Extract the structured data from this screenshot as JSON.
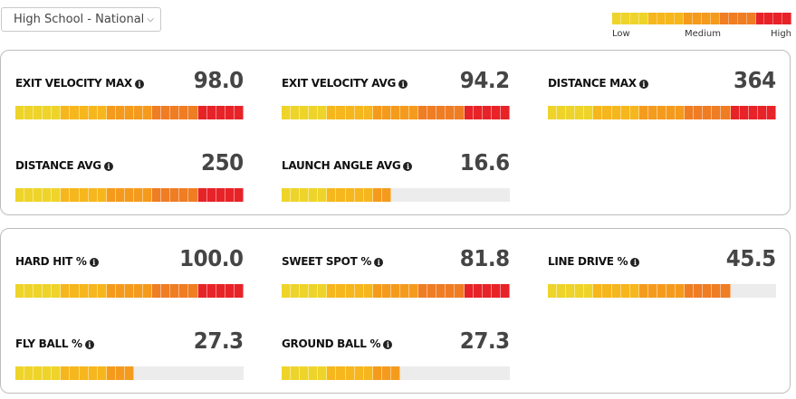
{
  "filter": {
    "selected": "High School - National"
  },
  "legend": {
    "low": "Low",
    "medium": "Medium",
    "high": "High",
    "colors": [
      "#eed42a",
      "#f6b61d",
      "#f49b1d",
      "#ef7d24",
      "#e72328"
    ]
  },
  "panels": [
    {
      "metrics": [
        {
          "label": "EXIT VELOCITY MAX",
          "value": "98.0",
          "level": 1.0
        },
        {
          "label": "EXIT VELOCITY AVG",
          "value": "94.2",
          "level": 1.0
        },
        {
          "label": "DISTANCE MAX",
          "value": "364",
          "level": 1.0
        },
        {
          "label": "DISTANCE AVG",
          "value": "250",
          "level": 1.0
        },
        {
          "label": "LAUNCH ANGLE AVG",
          "value": "16.6",
          "level": 0.46
        }
      ]
    },
    {
      "metrics": [
        {
          "label": "HARD HIT %",
          "value": "100.0",
          "level": 1.0
        },
        {
          "label": "SWEET SPOT %",
          "value": "81.8",
          "level": 1.0
        },
        {
          "label": "LINE DRIVE %",
          "value": "45.5",
          "level": 0.8
        },
        {
          "label": "FLY BALL %",
          "value": "27.3",
          "level": 0.53
        },
        {
          "label": "GROUND BALL %",
          "value": "27.3",
          "level": 0.53
        }
      ]
    }
  ]
}
